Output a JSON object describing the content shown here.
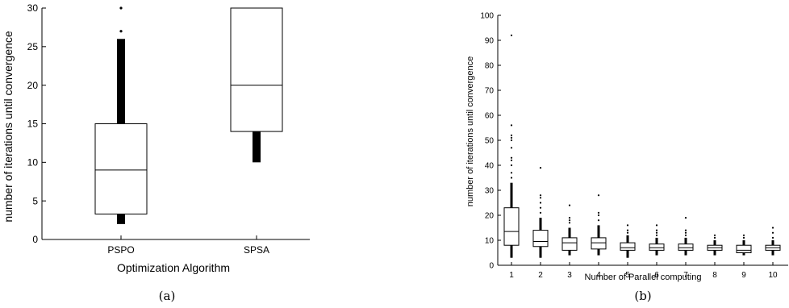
{
  "chart_data": [
    {
      "type": "box",
      "caption": "(a)",
      "xlabel": "Optimization Algorithm",
      "ylabel": "number of iterations until convergence",
      "ylim": [
        0,
        30
      ],
      "yticks": [
        0,
        5,
        10,
        15,
        20,
        25,
        30
      ],
      "categories": [
        "PSPO",
        "SPSA"
      ],
      "boxes": [
        {
          "category": "PSPO",
          "whisker_low": 2,
          "q1": 3.3,
          "median": 9,
          "q3": 15,
          "whisker_high": 26,
          "outliers": [
            27,
            30
          ]
        },
        {
          "category": "SPSA",
          "whisker_low": 10,
          "q1": 14,
          "median": 20,
          "q3": 30,
          "whisker_high": 30,
          "outliers": []
        }
      ]
    },
    {
      "type": "box",
      "caption": "(b)",
      "xlabel": "Number of Parallel computing",
      "ylabel": "number of iterations until convergence",
      "ylim": [
        0,
        100
      ],
      "yticks": [
        0,
        10,
        20,
        30,
        40,
        50,
        60,
        70,
        80,
        90,
        100
      ],
      "categories": [
        "1",
        "2",
        "3",
        "4",
        "5",
        "6",
        "7",
        "8",
        "9",
        "10"
      ],
      "boxes": [
        {
          "category": "1",
          "whisker_low": 3,
          "q1": 8,
          "median": 13.5,
          "q3": 23,
          "whisker_high": 33,
          "outliers": [
            35,
            37,
            40,
            42,
            43,
            47,
            50,
            51,
            52,
            56,
            92
          ]
        },
        {
          "category": "2",
          "whisker_low": 3,
          "q1": 7.5,
          "median": 9.5,
          "q3": 14,
          "whisker_high": 19,
          "outliers": [
            21,
            23,
            25,
            27,
            28,
            39
          ]
        },
        {
          "category": "3",
          "whisker_low": 4,
          "q1": 6,
          "median": 9,
          "q3": 11,
          "whisker_high": 15,
          "outliers": [
            17,
            18,
            19,
            24
          ]
        },
        {
          "category": "4",
          "whisker_low": 4,
          "q1": 6.5,
          "median": 9,
          "q3": 11,
          "whisker_high": 16,
          "outliers": [
            18,
            20,
            21,
            28
          ]
        },
        {
          "category": "5",
          "whisker_low": 3,
          "q1": 6,
          "median": 7,
          "q3": 9,
          "whisker_high": 12,
          "outliers": [
            13,
            14,
            16
          ]
        },
        {
          "category": "6",
          "whisker_low": 4,
          "q1": 6,
          "median": 7,
          "q3": 8.5,
          "whisker_high": 11,
          "outliers": [
            12,
            13,
            14,
            16
          ]
        },
        {
          "category": "7",
          "whisker_low": 4,
          "q1": 6,
          "median": 7,
          "q3": 8.5,
          "whisker_high": 11,
          "outliers": [
            12,
            13,
            14,
            19
          ]
        },
        {
          "category": "8",
          "whisker_low": 4,
          "q1": 6,
          "median": 7,
          "q3": 8,
          "whisker_high": 10,
          "outliers": [
            11,
            12
          ]
        },
        {
          "category": "9",
          "whisker_low": 4,
          "q1": 5,
          "median": 6,
          "q3": 8,
          "whisker_high": 10,
          "outliers": [
            11,
            12
          ]
        },
        {
          "category": "10",
          "whisker_low": 4,
          "q1": 6,
          "median": 7,
          "q3": 8,
          "whisker_high": 10,
          "outliers": [
            11,
            13,
            15
          ]
        }
      ]
    }
  ]
}
